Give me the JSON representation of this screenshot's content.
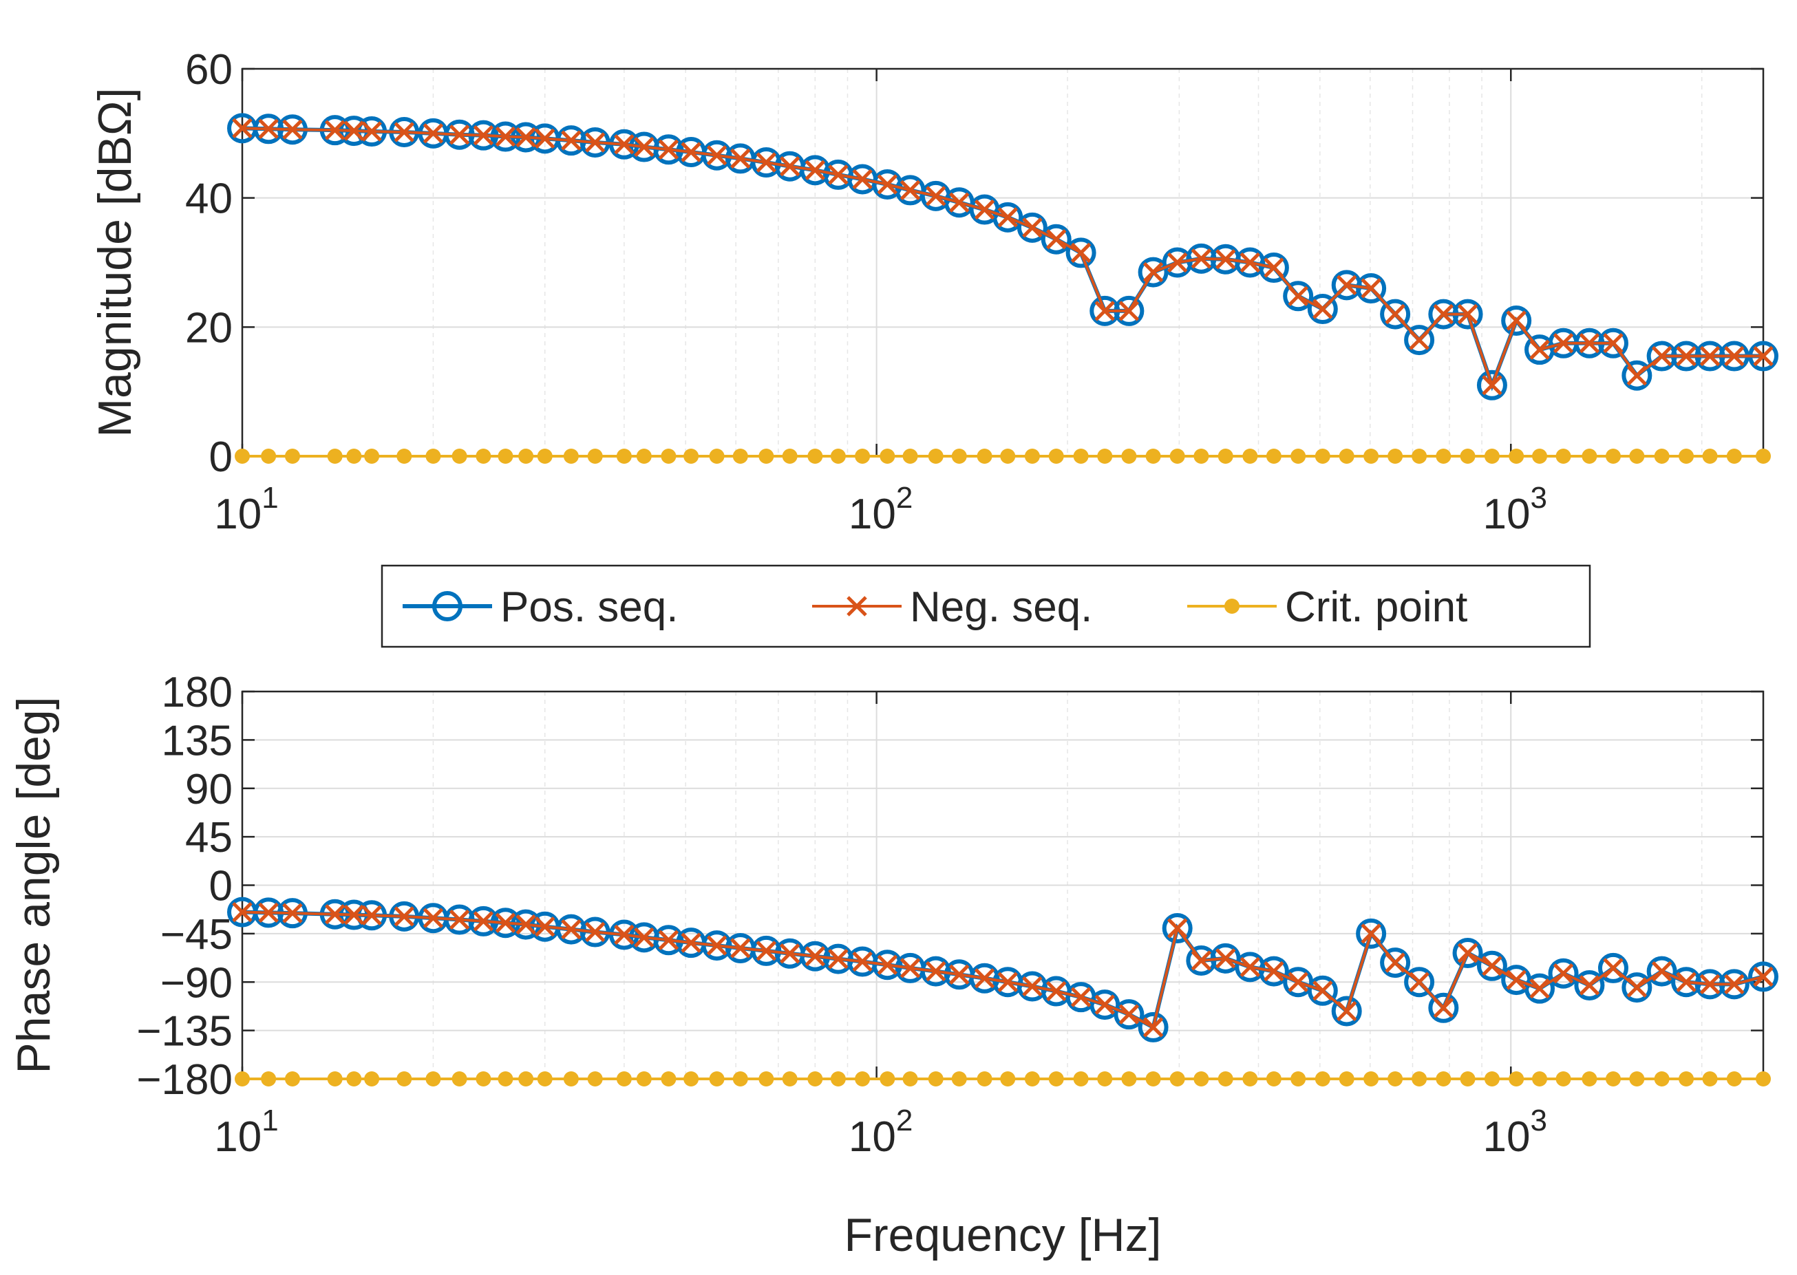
{
  "chart_data": [
    {
      "id": "magnitude",
      "type": "line",
      "xscale": "log",
      "xlim": [
        10,
        2500
      ],
      "ylim": [
        0,
        60
      ],
      "ylabel": "Magnitude [dBΩ]",
      "xlabel": "",
      "grid": true,
      "yticks": [
        "0",
        "20",
        "40",
        "60"
      ],
      "yticks_values": [
        0,
        20,
        40,
        60
      ],
      "xticks": [
        {
          "base": "10",
          "exp": "1",
          "value": 10
        },
        {
          "base": "10",
          "exp": "2",
          "value": 100
        },
        {
          "base": "10",
          "exp": "3",
          "value": 1000
        }
      ],
      "series": [
        {
          "name": "Pos. seq.",
          "color": "#0072BD",
          "marker": "circle",
          "x": [
            10,
            11,
            12,
            14,
            15,
            16,
            18,
            20,
            22,
            24,
            26,
            28,
            30,
            33,
            36,
            40,
            43,
            47,
            51,
            56,
            61,
            67,
            73,
            80,
            87,
            95,
            104,
            113,
            124,
            135,
            148,
            161,
            176,
            192,
            210,
            229,
            250,
            273,
            298,
            325,
            355,
            388,
            423,
            462,
            505,
            551,
            602,
            657,
            717,
            783,
            855,
            934,
            1020,
            1110,
            1210,
            1330,
            1450,
            1580,
            1730,
            1890,
            2060,
            2250,
            2500
          ],
          "y": [
            50.8,
            50.7,
            50.6,
            50.5,
            50.4,
            50.3,
            50.2,
            50.0,
            49.8,
            49.7,
            49.5,
            49.4,
            49.2,
            48.9,
            48.6,
            48.3,
            47.9,
            47.5,
            47.1,
            46.6,
            46.1,
            45.5,
            44.9,
            44.3,
            43.6,
            42.9,
            42.1,
            41.2,
            40.3,
            39.3,
            38.2,
            37.0,
            35.4,
            33.6,
            31.5,
            22.5,
            22.5,
            28.5,
            30.0,
            30.6,
            30.5,
            30.0,
            29.2,
            24.8,
            22.8,
            26.5,
            26.0,
            22.0,
            18.0,
            22.0,
            22.0,
            11.0,
            21.0,
            16.5,
            17.5,
            17.5,
            17.5,
            12.5,
            15.5,
            15.5,
            15.5,
            15.5,
            15.5
          ]
        },
        {
          "name": "Neg. seq.",
          "color": "#D95319",
          "marker": "x",
          "x": [
            10,
            11,
            12,
            14,
            15,
            16,
            18,
            20,
            22,
            24,
            26,
            28,
            30,
            33,
            36,
            40,
            43,
            47,
            51,
            56,
            61,
            67,
            73,
            80,
            87,
            95,
            104,
            113,
            124,
            135,
            148,
            161,
            176,
            192,
            210,
            229,
            250,
            273,
            298,
            325,
            355,
            388,
            423,
            462,
            505,
            551,
            602,
            657,
            717,
            783,
            855,
            934,
            1020,
            1110,
            1210,
            1330,
            1450,
            1580,
            1730,
            1890,
            2060,
            2250,
            2500
          ],
          "y": [
            50.8,
            50.7,
            50.6,
            50.5,
            50.4,
            50.3,
            50.2,
            50.0,
            49.8,
            49.7,
            49.5,
            49.4,
            49.2,
            48.9,
            48.6,
            48.3,
            47.9,
            47.5,
            47.1,
            46.6,
            46.1,
            45.5,
            44.9,
            44.3,
            43.6,
            42.9,
            42.1,
            41.2,
            40.3,
            39.3,
            38.2,
            37.0,
            35.4,
            33.6,
            31.5,
            22.5,
            22.5,
            28.5,
            30.0,
            30.6,
            30.5,
            30.0,
            29.2,
            24.8,
            22.8,
            26.5,
            26.0,
            22.0,
            18.0,
            22.0,
            22.0,
            11.0,
            21.0,
            16.5,
            17.5,
            17.5,
            17.5,
            12.5,
            15.5,
            15.5,
            15.5,
            15.5,
            15.5
          ]
        },
        {
          "name": "Crit. point",
          "color": "#EDB120",
          "marker": "dot",
          "x": [
            10,
            11,
            12,
            14,
            15,
            16,
            18,
            20,
            22,
            24,
            26,
            28,
            30,
            33,
            36,
            40,
            43,
            47,
            51,
            56,
            61,
            67,
            73,
            80,
            87,
            95,
            104,
            113,
            124,
            135,
            148,
            161,
            176,
            192,
            210,
            229,
            250,
            273,
            298,
            325,
            355,
            388,
            423,
            462,
            505,
            551,
            602,
            657,
            717,
            783,
            855,
            934,
            1020,
            1110,
            1210,
            1330,
            1450,
            1580,
            1730,
            1890,
            2060,
            2250,
            2500
          ],
          "y": [
            0,
            0,
            0,
            0,
            0,
            0,
            0,
            0,
            0,
            0,
            0,
            0,
            0,
            0,
            0,
            0,
            0,
            0,
            0,
            0,
            0,
            0,
            0,
            0,
            0,
            0,
            0,
            0,
            0,
            0,
            0,
            0,
            0,
            0,
            0,
            0,
            0,
            0,
            0,
            0,
            0,
            0,
            0,
            0,
            0,
            0,
            0,
            0,
            0,
            0,
            0,
            0,
            0,
            0,
            0,
            0,
            0,
            0,
            0,
            0,
            0,
            0,
            0
          ]
        }
      ]
    },
    {
      "id": "phase",
      "type": "line",
      "xscale": "log",
      "xlim": [
        10,
        2500
      ],
      "ylim": [
        -180,
        180
      ],
      "ylabel": "Phase angle [deg]",
      "xlabel": "Frequency [Hz]",
      "grid": true,
      "yticks": [
        "−180",
        "−135",
        "−90",
        "−45",
        "0",
        "45",
        "90",
        "135",
        "180"
      ],
      "yticks_values": [
        -180,
        -135,
        -90,
        -45,
        0,
        45,
        90,
        135,
        180
      ],
      "xticks": [
        {
          "base": "10",
          "exp": "1",
          "value": 10
        },
        {
          "base": "10",
          "exp": "2",
          "value": 100
        },
        {
          "base": "10",
          "exp": "3",
          "value": 1000
        }
      ],
      "series": [
        {
          "name": "Pos. seq.",
          "color": "#0072BD",
          "marker": "circle",
          "x": [
            10,
            11,
            12,
            14,
            15,
            16,
            18,
            20,
            22,
            24,
            26,
            28,
            30,
            33,
            36,
            40,
            43,
            47,
            51,
            56,
            61,
            67,
            73,
            80,
            87,
            95,
            104,
            113,
            124,
            135,
            148,
            161,
            176,
            192,
            210,
            229,
            250,
            273,
            298,
            325,
            355,
            388,
            423,
            462,
            505,
            551,
            602,
            657,
            717,
            783,
            855,
            934,
            1020,
            1110,
            1210,
            1330,
            1450,
            1580,
            1730,
            1890,
            2060,
            2250,
            2500
          ],
          "y": [
            -25,
            -25.5,
            -26,
            -27,
            -27.5,
            -28,
            -29,
            -30.5,
            -32,
            -33.5,
            -35,
            -36.5,
            -38.5,
            -41,
            -43.5,
            -46,
            -48.5,
            -51,
            -53.5,
            -56,
            -58.5,
            -61,
            -63.5,
            -66,
            -68.5,
            -71,
            -74,
            -77,
            -80,
            -83,
            -86.5,
            -90,
            -94,
            -98.5,
            -104,
            -111,
            -120,
            -132,
            -40,
            -70,
            -68,
            -76,
            -80,
            -90,
            -98,
            -117,
            -45,
            -72,
            -90,
            -114,
            -63,
            -75,
            -88,
            -96,
            -82,
            -93,
            -77,
            -95,
            -80,
            -90,
            -92,
            -92,
            -85
          ]
        },
        {
          "name": "Neg. seq.",
          "color": "#D95319",
          "marker": "x",
          "x": [
            10,
            11,
            12,
            14,
            15,
            16,
            18,
            20,
            22,
            24,
            26,
            28,
            30,
            33,
            36,
            40,
            43,
            47,
            51,
            56,
            61,
            67,
            73,
            80,
            87,
            95,
            104,
            113,
            124,
            135,
            148,
            161,
            176,
            192,
            210,
            229,
            250,
            273,
            298,
            325,
            355,
            388,
            423,
            462,
            505,
            551,
            602,
            657,
            717,
            783,
            855,
            934,
            1020,
            1110,
            1210,
            1330,
            1450,
            1580,
            1730,
            1890,
            2060,
            2250,
            2500
          ],
          "y": [
            -25,
            -25.5,
            -26,
            -27,
            -27.5,
            -28,
            -29,
            -30.5,
            -32,
            -33.5,
            -35,
            -36.5,
            -38.5,
            -41,
            -43.5,
            -46,
            -48.5,
            -51,
            -53.5,
            -56,
            -58.5,
            -61,
            -63.5,
            -66,
            -68.5,
            -71,
            -74,
            -77,
            -80,
            -83,
            -86.5,
            -90,
            -94,
            -98.5,
            -104,
            -111,
            -120,
            -132,
            -40,
            -70,
            -68,
            -76,
            -80,
            -90,
            -98,
            -117,
            -45,
            -72,
            -90,
            -114,
            -63,
            -75,
            -88,
            -96,
            -82,
            -93,
            -77,
            -95,
            -80,
            -90,
            -92,
            -92,
            -85
          ]
        },
        {
          "name": "Crit. point",
          "color": "#EDB120",
          "marker": "dot",
          "x": [
            10,
            11,
            12,
            14,
            15,
            16,
            18,
            20,
            22,
            24,
            26,
            28,
            30,
            33,
            36,
            40,
            43,
            47,
            51,
            56,
            61,
            67,
            73,
            80,
            87,
            95,
            104,
            113,
            124,
            135,
            148,
            161,
            176,
            192,
            210,
            229,
            250,
            273,
            298,
            325,
            355,
            388,
            423,
            462,
            505,
            551,
            602,
            657,
            717,
            783,
            855,
            934,
            1020,
            1110,
            1210,
            1330,
            1450,
            1580,
            1730,
            1890,
            2060,
            2250,
            2500
          ],
          "y": [
            -180,
            -180,
            -180,
            -180,
            -180,
            -180,
            -180,
            -180,
            -180,
            -180,
            -180,
            -180,
            -180,
            -180,
            -180,
            -180,
            -180,
            -180,
            -180,
            -180,
            -180,
            -180,
            -180,
            -180,
            -180,
            -180,
            -180,
            -180,
            -180,
            -180,
            -180,
            -180,
            -180,
            -180,
            -180,
            -180,
            -180,
            -180,
            -180,
            -180,
            -180,
            -180,
            -180,
            -180,
            -180,
            -180,
            -180,
            -180,
            -180,
            -180,
            -180,
            -180,
            -180,
            -180,
            -180,
            -180,
            -180,
            -180,
            -180,
            -180,
            -180,
            -180,
            -180
          ]
        }
      ]
    }
  ],
  "legend": {
    "placement": "between-panels",
    "entries": [
      {
        "label": "Pos. seq.",
        "color": "#0072BD",
        "marker": "circle"
      },
      {
        "label": "Neg. seq.",
        "color": "#D95319",
        "marker": "x"
      },
      {
        "label": "Crit. point",
        "color": "#EDB120",
        "marker": "dot"
      }
    ]
  }
}
